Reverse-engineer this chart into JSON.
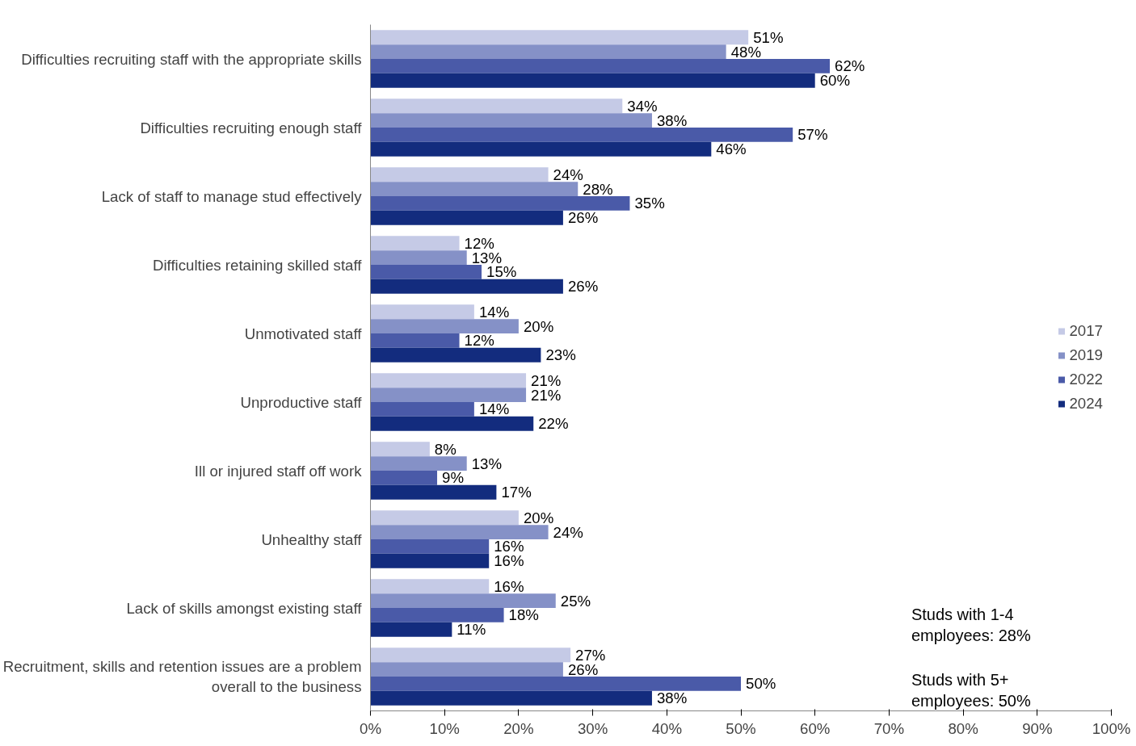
{
  "chart_data": {
    "type": "bar",
    "orientation": "horizontal",
    "categories": [
      "Difficulties recruiting staff with the appropriate skills",
      "Difficulties recruiting enough staff",
      "Lack of staff to manage stud effectively",
      "Difficulties retaining skilled staff",
      "Unmotivated staff",
      "Unproductive staff",
      "Ill or injured staff off work",
      "Unhealthy staff",
      "Lack of skills amongst existing staff",
      "Recruitment, skills and retention issues are a problem overall to the business"
    ],
    "series": [
      {
        "name": "2017",
        "color": "#c5cae6",
        "values": [
          51,
          34,
          24,
          12,
          14,
          21,
          8,
          20,
          16,
          27
        ],
        "value_labels": [
          "51%",
          "34%",
          "24%",
          "12%",
          "14%",
          "21%",
          "8%",
          "20%",
          "16%",
          "27%"
        ]
      },
      {
        "name": "2019",
        "color": "#8591c7",
        "values": [
          48,
          38,
          28,
          13,
          20,
          21,
          13,
          24,
          25,
          26
        ],
        "value_labels": [
          "48%",
          "38%",
          "28%",
          "13%",
          "20%",
          "21%",
          "13%",
          "24%",
          "25%",
          "26%"
        ]
      },
      {
        "name": "2022",
        "color": "#4a5aa8",
        "values": [
          62,
          57,
          35,
          15,
          12,
          14,
          9,
          16,
          18,
          50
        ],
        "value_labels": [
          "62%",
          "57%",
          "35%",
          "15%",
          "12%",
          "14%",
          "9%",
          "16%",
          "18%",
          "50%"
        ]
      },
      {
        "name": "2024",
        "color": "#132c7e",
        "values": [
          60,
          46,
          26,
          26,
          23,
          22,
          17,
          16,
          11,
          38
        ],
        "value_labels": [
          "60%",
          "46%",
          "26%",
          "26%",
          "23%",
          "22%",
          "17%",
          "16%",
          "11%",
          "38%"
        ]
      }
    ],
    "xlim": [
      0,
      100
    ],
    "xticks": [
      {
        "value": 0,
        "label": "0%"
      },
      {
        "value": 10,
        "label": "10%"
      },
      {
        "value": 20,
        "label": "20%"
      },
      {
        "value": 30,
        "label": "30%"
      },
      {
        "value": 40,
        "label": "40%"
      },
      {
        "value": 50,
        "label": "50%"
      },
      {
        "value": 60,
        "label": "60%"
      },
      {
        "value": 70,
        "label": "70%"
      },
      {
        "value": 80,
        "label": "80%"
      },
      {
        "value": 90,
        "label": "90%"
      },
      {
        "value": 100,
        "label": "100%"
      }
    ],
    "annotations": [
      "Studs with 1-4 employees: 28%",
      "Studs with 5+ employees: 50%"
    ],
    "grid": false,
    "legend": "right"
  }
}
